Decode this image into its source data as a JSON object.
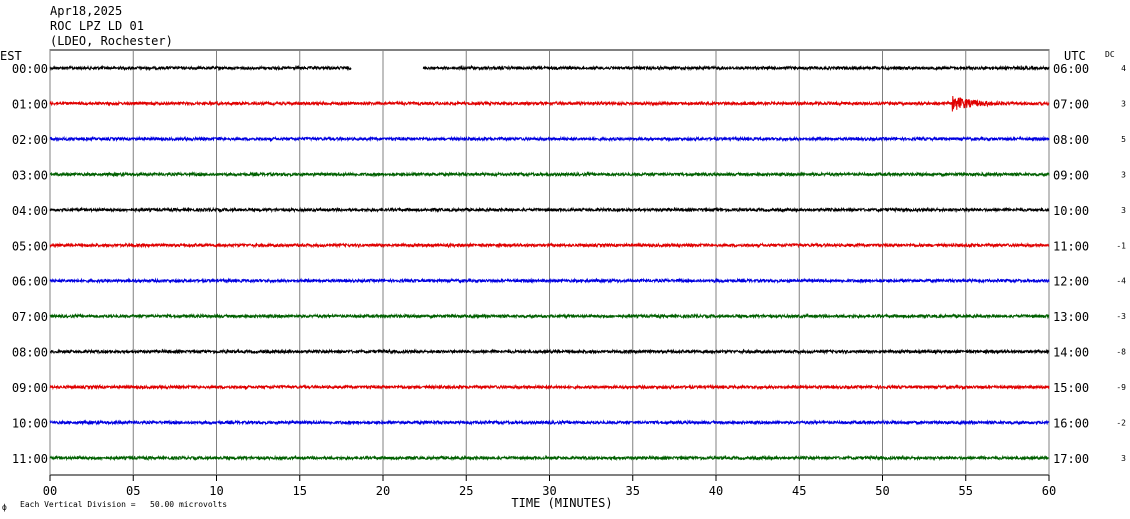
{
  "header": {
    "date": "Apr18,2025",
    "station": "ROC LPZ LD 01",
    "network": "(LDEO, Rochester)"
  },
  "left_axis_title": "EST",
  "right_axis_title": "UTC",
  "dc_title": "DC",
  "footer": {
    "icon_glyph": "ф",
    "scale_note": "Each Vertical Division =   50.00 microvolts"
  },
  "chart_data": {
    "type": "line",
    "xlabel": "TIME (MINUTES)",
    "xlim": [
      0,
      60
    ],
    "x_ticks": [
      "00",
      "05",
      "10",
      "15",
      "20",
      "25",
      "30",
      "35",
      "40",
      "45",
      "50",
      "55",
      "60"
    ],
    "trace_colors": [
      "#000000",
      "#e00000",
      "#0000e0",
      "#006000"
    ],
    "rows": [
      {
        "est": "00:00",
        "utc": "06:00",
        "dc": "4",
        "gaps": [
          [
            18.1,
            22.4
          ]
        ],
        "events": []
      },
      {
        "est": "01:00",
        "utc": "07:00",
        "dc": "3",
        "gaps": [],
        "events": [
          {
            "start": 54.2,
            "end": 57.5,
            "amplitude": 7
          }
        ]
      },
      {
        "est": "02:00",
        "utc": "08:00",
        "dc": "5",
        "gaps": [],
        "events": []
      },
      {
        "est": "03:00",
        "utc": "09:00",
        "dc": "3",
        "gaps": [],
        "events": []
      },
      {
        "est": "04:00",
        "utc": "10:00",
        "dc": "3",
        "gaps": [],
        "events": []
      },
      {
        "est": "05:00",
        "utc": "11:00",
        "dc": "-1",
        "gaps": [],
        "events": []
      },
      {
        "est": "06:00",
        "utc": "12:00",
        "dc": "-4",
        "gaps": [],
        "events": []
      },
      {
        "est": "07:00",
        "utc": "13:00",
        "dc": "-3",
        "gaps": [],
        "events": []
      },
      {
        "est": "08:00",
        "utc": "14:00",
        "dc": "-8",
        "gaps": [],
        "events": []
      },
      {
        "est": "09:00",
        "utc": "15:00",
        "dc": "-9",
        "gaps": [],
        "events": []
      },
      {
        "est": "10:00",
        "utc": "16:00",
        "dc": "-2",
        "gaps": [],
        "events": []
      },
      {
        "est": "11:00",
        "utc": "17:00",
        "dc": "3",
        "gaps": [],
        "events": []
      }
    ]
  }
}
